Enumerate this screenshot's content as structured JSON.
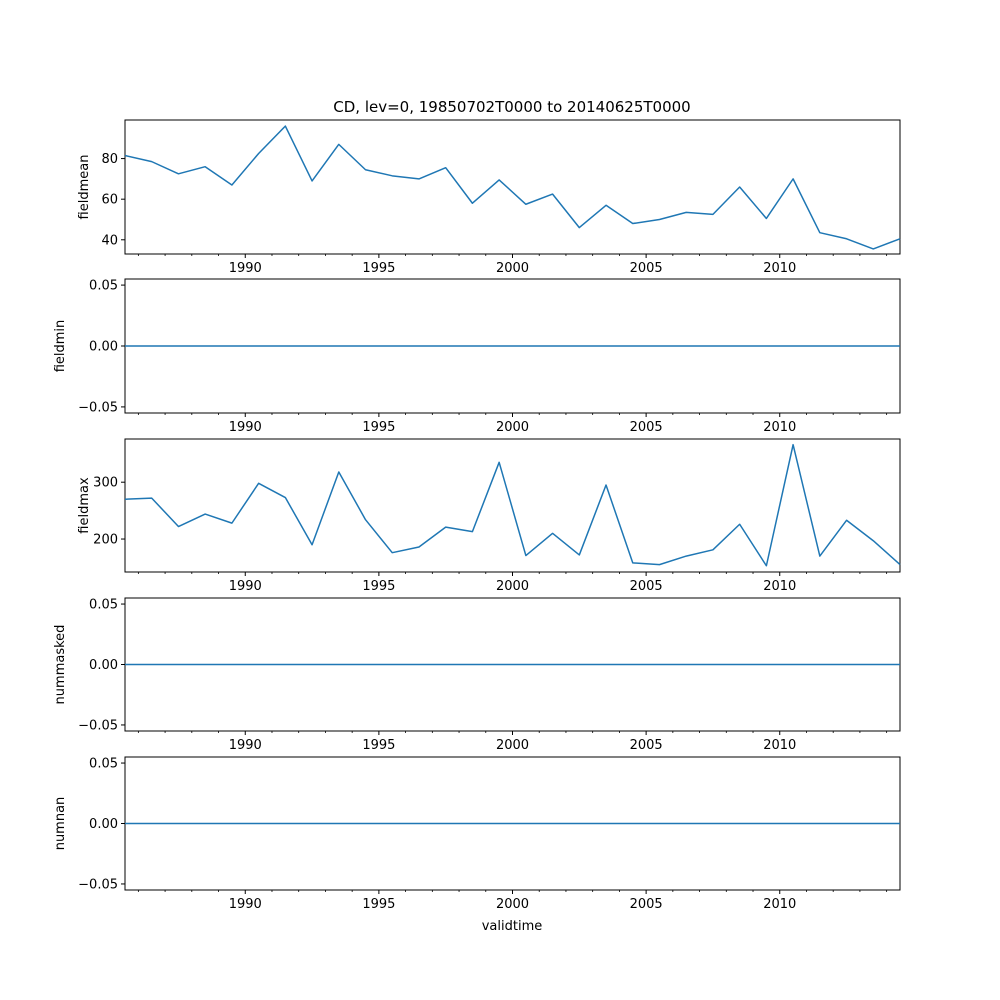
{
  "figure": {
    "title": "CD, lev=0, 19850702T0000 to 20140625T0000",
    "xlabel": "validtime",
    "line_color": "#1f77b4"
  },
  "chart_data": [
    {
      "type": "line",
      "ylabel": "fieldmean",
      "x": [
        1985.5,
        1986.5,
        1987.5,
        1988.5,
        1989.5,
        1990.5,
        1991.5,
        1992.5,
        1993.5,
        1994.5,
        1995.5,
        1996.5,
        1997.5,
        1998.5,
        1999.5,
        2000.5,
        2001.5,
        2002.5,
        2003.5,
        2004.5,
        2005.5,
        2006.5,
        2007.5,
        2008.5,
        2009.5,
        2010.5,
        2011.5,
        2012.5,
        2013.5,
        2014.5
      ],
      "values": [
        81.5,
        78.5,
        72.5,
        76,
        67,
        82.5,
        96,
        69,
        87,
        74.5,
        71.5,
        70,
        75.5,
        58,
        69.5,
        57.5,
        62.5,
        46,
        57,
        48,
        50,
        53.5,
        52.5,
        66,
        50.5,
        70,
        43.5,
        40.5,
        35.5,
        40.5
      ],
      "ylim": [
        33,
        99
      ],
      "yticks": [
        40,
        60,
        80
      ],
      "ytick_labels": [
        "40",
        "60",
        "80"
      ],
      "xlim": [
        1985.5,
        2014.5
      ],
      "xticks": [
        1990,
        1995,
        2000,
        2005,
        2010
      ],
      "xtick_labels": [
        "1990",
        "1995",
        "2000",
        "2005",
        "2010"
      ]
    },
    {
      "type": "line",
      "ylabel": "fieldmin",
      "x": [
        1985.5,
        1986.5,
        1987.5,
        1988.5,
        1989.5,
        1990.5,
        1991.5,
        1992.5,
        1993.5,
        1994.5,
        1995.5,
        1996.5,
        1997.5,
        1998.5,
        1999.5,
        2000.5,
        2001.5,
        2002.5,
        2003.5,
        2004.5,
        2005.5,
        2006.5,
        2007.5,
        2008.5,
        2009.5,
        2010.5,
        2011.5,
        2012.5,
        2013.5,
        2014.5
      ],
      "values": [
        0,
        0,
        0,
        0,
        0,
        0,
        0,
        0,
        0,
        0,
        0,
        0,
        0,
        0,
        0,
        0,
        0,
        0,
        0,
        0,
        0,
        0,
        0,
        0,
        0,
        0,
        0,
        0,
        0,
        0
      ],
      "ylim": [
        -0.055,
        0.055
      ],
      "yticks": [
        -0.05,
        0,
        0.05
      ],
      "ytick_labels": [
        "−0.05",
        "0.00",
        "0.05"
      ],
      "xlim": [
        1985.5,
        2014.5
      ],
      "xticks": [
        1990,
        1995,
        2000,
        2005,
        2010
      ],
      "xtick_labels": [
        "1990",
        "1995",
        "2000",
        "2005",
        "2010"
      ]
    },
    {
      "type": "line",
      "ylabel": "fieldmax",
      "x": [
        1985.5,
        1986.5,
        1987.5,
        1988.5,
        1989.5,
        1990.5,
        1991.5,
        1992.5,
        1993.5,
        1994.5,
        1995.5,
        1996.5,
        1997.5,
        1998.5,
        1999.5,
        2000.5,
        2001.5,
        2002.5,
        2003.5,
        2004.5,
        2005.5,
        2006.5,
        2007.5,
        2008.5,
        2009.5,
        2010.5,
        2011.5,
        2012.5,
        2013.5,
        2014.5
      ],
      "values": [
        270,
        272,
        222,
        244,
        228,
        298,
        273,
        190,
        318,
        234,
        176,
        186,
        221,
        213,
        335,
        171,
        210,
        172,
        295,
        158,
        155,
        170,
        181,
        226,
        153,
        366,
        170,
        233,
        197,
        155
      ],
      "ylim": [
        142,
        376
      ],
      "yticks": [
        200,
        300
      ],
      "ytick_labels": [
        "200",
        "300"
      ],
      "xlim": [
        1985.5,
        2014.5
      ],
      "xticks": [
        1990,
        1995,
        2000,
        2005,
        2010
      ],
      "xtick_labels": [
        "1990",
        "1995",
        "2000",
        "2005",
        "2010"
      ]
    },
    {
      "type": "line",
      "ylabel": "nummasked",
      "x": [
        1985.5,
        1986.5,
        1987.5,
        1988.5,
        1989.5,
        1990.5,
        1991.5,
        1992.5,
        1993.5,
        1994.5,
        1995.5,
        1996.5,
        1997.5,
        1998.5,
        1999.5,
        2000.5,
        2001.5,
        2002.5,
        2003.5,
        2004.5,
        2005.5,
        2006.5,
        2007.5,
        2008.5,
        2009.5,
        2010.5,
        2011.5,
        2012.5,
        2013.5,
        2014.5
      ],
      "values": [
        0,
        0,
        0,
        0,
        0,
        0,
        0,
        0,
        0,
        0,
        0,
        0,
        0,
        0,
        0,
        0,
        0,
        0,
        0,
        0,
        0,
        0,
        0,
        0,
        0,
        0,
        0,
        0,
        0,
        0
      ],
      "ylim": [
        -0.055,
        0.055
      ],
      "yticks": [
        -0.05,
        0,
        0.05
      ],
      "ytick_labels": [
        "−0.05",
        "0.00",
        "0.05"
      ],
      "xlim": [
        1985.5,
        2014.5
      ],
      "xticks": [
        1990,
        1995,
        2000,
        2005,
        2010
      ],
      "xtick_labels": [
        "1990",
        "1995",
        "2000",
        "2005",
        "2010"
      ]
    },
    {
      "type": "line",
      "ylabel": "numnan",
      "x": [
        1985.5,
        1986.5,
        1987.5,
        1988.5,
        1989.5,
        1990.5,
        1991.5,
        1992.5,
        1993.5,
        1994.5,
        1995.5,
        1996.5,
        1997.5,
        1998.5,
        1999.5,
        2000.5,
        2001.5,
        2002.5,
        2003.5,
        2004.5,
        2005.5,
        2006.5,
        2007.5,
        2008.5,
        2009.5,
        2010.5,
        2011.5,
        2012.5,
        2013.5,
        2014.5
      ],
      "values": [
        0,
        0,
        0,
        0,
        0,
        0,
        0,
        0,
        0,
        0,
        0,
        0,
        0,
        0,
        0,
        0,
        0,
        0,
        0,
        0,
        0,
        0,
        0,
        0,
        0,
        0,
        0,
        0,
        0,
        0
      ],
      "ylim": [
        -0.055,
        0.055
      ],
      "yticks": [
        -0.05,
        0,
        0.05
      ],
      "ytick_labels": [
        "−0.05",
        "0.00",
        "0.05"
      ],
      "xlim": [
        1985.5,
        2014.5
      ],
      "xticks": [
        1990,
        1995,
        2000,
        2005,
        2010
      ],
      "xtick_labels": [
        "1990",
        "1995",
        "2000",
        "2005",
        "2010"
      ]
    }
  ]
}
